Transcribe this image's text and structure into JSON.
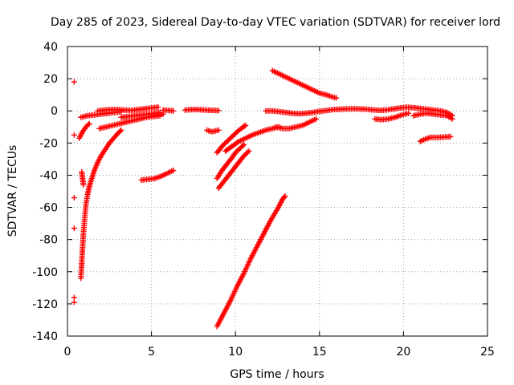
{
  "chart_data": {
    "type": "scatter",
    "title": "Day 285 of 2023, Sidereal Day-to-day VTEC variation (SDTVAR) for receiver lord",
    "xlabel": "GPS time / hours",
    "ylabel": "SDTVAR / TECUs",
    "xlim": [
      0,
      25
    ],
    "ylim": [
      -140,
      40
    ],
    "x_ticks": [
      0,
      5,
      10,
      15,
      20,
      25
    ],
    "y_ticks": [
      -140,
      -120,
      -100,
      -80,
      -60,
      -40,
      -20,
      0,
      20,
      40
    ],
    "x_tick_labels": [
      "0",
      "5",
      "10",
      "15",
      "20",
      "25"
    ],
    "y_tick_labels": [
      "-140",
      "-120",
      "-100",
      "-80",
      "-60",
      "-40",
      "-20",
      "0",
      "20",
      "40"
    ],
    "grid": true,
    "legend": "none",
    "marker": "+",
    "color": "#ff0000",
    "series": [
      {
        "segments": [
          [
            [
              0.4,
              18
            ]
          ],
          [
            [
              0.4,
              -15
            ]
          ],
          [
            [
              0.4,
              -54
            ]
          ],
          [
            [
              0.4,
              -73
            ]
          ],
          [
            [
              0.4,
              -116
            ]
          ],
          [
            [
              0.4,
              -119
            ]
          ],
          [
            [
              0.8,
              -104
            ],
            [
              0.85,
              -95
            ],
            [
              0.9,
              -85
            ],
            [
              0.95,
              -76
            ],
            [
              1.0,
              -70
            ],
            [
              1.05,
              -64
            ],
            [
              1.1,
              -58
            ],
            [
              1.2,
              -52
            ],
            [
              1.3,
              -47
            ],
            [
              1.45,
              -42
            ],
            [
              1.6,
              -37
            ],
            [
              1.8,
              -32
            ],
            [
              2.0,
              -28
            ],
            [
              2.25,
              -24
            ],
            [
              2.5,
              -20
            ],
            [
              2.75,
              -17
            ],
            [
              3.0,
              -14
            ],
            [
              3.2,
              -12
            ]
          ],
          [
            [
              0.85,
              -38
            ],
            [
              0.9,
              -42
            ],
            [
              0.95,
              -46
            ]
          ],
          [
            [
              0.7,
              -17
            ],
            [
              0.9,
              -13
            ],
            [
              1.1,
              -10
            ],
            [
              1.3,
              -8
            ]
          ],
          [
            [
              0.8,
              -4
            ],
            [
              1.2,
              -3
            ],
            [
              1.6,
              -2.5
            ],
            [
              2.0,
              -2
            ],
            [
              2.4,
              -1.5
            ],
            [
              2.8,
              -1
            ],
            [
              3.2,
              -0.5
            ]
          ],
          [
            [
              1.8,
              0
            ],
            [
              2.2,
              0.5
            ],
            [
              2.6,
              0.8
            ],
            [
              3.0,
              0.8
            ],
            [
              3.4,
              0.5
            ],
            [
              3.8,
              0.3
            ],
            [
              4.2,
              0.8
            ],
            [
              4.6,
              1.3
            ],
            [
              5.0,
              1.8
            ],
            [
              5.4,
              2.3
            ]
          ],
          [
            [
              1.9,
              -11
            ],
            [
              2.3,
              -10
            ],
            [
              2.7,
              -9
            ],
            [
              3.1,
              -8
            ],
            [
              3.5,
              -7
            ],
            [
              3.9,
              -6
            ],
            [
              4.3,
              -5
            ],
            [
              4.7,
              -4
            ],
            [
              5.1,
              -3.5
            ],
            [
              5.5,
              -3
            ]
          ],
          [
            [
              3.2,
              -4
            ],
            [
              3.6,
              -3.5
            ],
            [
              4.0,
              -3
            ],
            [
              4.4,
              -2.5
            ],
            [
              4.8,
              -2
            ],
            [
              5.2,
              -1.5
            ],
            [
              5.5,
              -1
            ]
          ],
          [
            [
              4.4,
              -43
            ],
            [
              4.8,
              -42.5
            ],
            [
              5.2,
              -42
            ],
            [
              5.6,
              -40.5
            ],
            [
              6.0,
              -38.5
            ],
            [
              6.3,
              -37
            ]
          ],
          [
            [
              5.1,
              -3
            ],
            [
              5.4,
              -2.5
            ],
            [
              5.7,
              -2
            ]
          ],
          [
            [
              5.7,
              0.5
            ],
            [
              6.0,
              0.3
            ],
            [
              6.3,
              0
            ]
          ],
          [
            [
              7.0,
              0.5
            ],
            [
              7.4,
              0.8
            ],
            [
              7.8,
              0.8
            ],
            [
              8.2,
              0.5
            ],
            [
              8.6,
              0.3
            ],
            [
              9.0,
              0.2
            ]
          ],
          [
            [
              8.3,
              -12
            ],
            [
              8.6,
              -13
            ],
            [
              9.0,
              -12
            ]
          ],
          [
            [
              8.9,
              -26
            ],
            [
              9.2,
              -22
            ],
            [
              9.5,
              -19
            ],
            [
              9.8,
              -16
            ],
            [
              10.1,
              -13
            ],
            [
              10.4,
              -10.5
            ],
            [
              10.6,
              -9
            ]
          ],
          [
            [
              8.9,
              -42
            ],
            [
              9.2,
              -37
            ],
            [
              9.5,
              -33
            ],
            [
              9.8,
              -29
            ],
            [
              10.0,
              -26
            ],
            [
              10.3,
              -23
            ],
            [
              10.5,
              -21
            ]
          ],
          [
            [
              9.0,
              -48
            ],
            [
              9.3,
              -44
            ],
            [
              9.6,
              -40
            ],
            [
              9.9,
              -36
            ],
            [
              10.2,
              -32
            ],
            [
              10.5,
              -28
            ],
            [
              10.8,
              -25
            ]
          ],
          [
            [
              8.9,
              -134
            ],
            [
              9.3,
              -126
            ],
            [
              9.7,
              -118
            ],
            [
              10.1,
              -109
            ],
            [
              10.5,
              -101
            ],
            [
              10.9,
              -92
            ],
            [
              11.3,
              -84
            ],
            [
              11.7,
              -76
            ],
            [
              12.1,
              -68
            ],
            [
              12.5,
              -61
            ],
            [
              12.8,
              -55
            ],
            [
              12.95,
              -53
            ]
          ],
          [
            [
              9.4,
              -25
            ],
            [
              9.8,
              -22
            ],
            [
              10.2,
              -19
            ],
            [
              10.6,
              -17
            ],
            [
              11.0,
              -15
            ],
            [
              11.4,
              -13.5
            ],
            [
              11.8,
              -12
            ],
            [
              12.2,
              -11
            ],
            [
              12.6,
              -10
            ]
          ],
          [
            [
              12.4,
              -10
            ],
            [
              12.8,
              -11
            ],
            [
              13.2,
              -11
            ],
            [
              13.6,
              -10
            ],
            [
              14.0,
              -9
            ],
            [
              14.4,
              -7
            ],
            [
              14.8,
              -5
            ]
          ],
          [
            [
              12.2,
              25
            ],
            [
              12.6,
              23
            ],
            [
              13.0,
              21
            ],
            [
              13.4,
              19
            ],
            [
              13.8,
              17
            ],
            [
              14.2,
              15
            ],
            [
              14.6,
              13
            ],
            [
              15.0,
              11
            ],
            [
              15.4,
              10
            ],
            [
              15.8,
              8.5
            ],
            [
              16.0,
              8
            ]
          ],
          [
            [
              11.8,
              0
            ],
            [
              12.2,
              0
            ],
            [
              12.6,
              -0.5
            ],
            [
              13.0,
              -1
            ],
            [
              13.4,
              -1.5
            ],
            [
              13.8,
              -1.8
            ],
            [
              14.2,
              -1.5
            ],
            [
              14.6,
              -1
            ],
            [
              15.0,
              -0.3
            ],
            [
              15.4,
              0.2
            ],
            [
              15.8,
              0.8
            ],
            [
              16.2,
              1
            ],
            [
              16.6,
              1.2
            ],
            [
              17.0,
              1.3
            ],
            [
              17.4,
              1.2
            ],
            [
              17.8,
              1
            ],
            [
              18.2,
              0.6
            ],
            [
              18.6,
              0.3
            ],
            [
              19.0,
              0.6
            ],
            [
              19.4,
              1.2
            ],
            [
              19.8,
              1.8
            ],
            [
              20.2,
              2.2
            ],
            [
              20.6,
              2
            ],
            [
              21.0,
              1.5
            ],
            [
              21.4,
              1
            ],
            [
              21.8,
              0.5
            ],
            [
              22.2,
              0
            ],
            [
              22.6,
              -1
            ],
            [
              22.9,
              -3
            ]
          ],
          [
            [
              18.3,
              -5
            ],
            [
              18.7,
              -5.5
            ],
            [
              19.1,
              -5
            ],
            [
              19.5,
              -4
            ],
            [
              19.9,
              -2.5
            ],
            [
              20.3,
              -1.5
            ]
          ],
          [
            [
              20.6,
              -3
            ],
            [
              21.0,
              -2
            ],
            [
              21.4,
              -1.5
            ],
            [
              21.8,
              -2
            ],
            [
              22.2,
              -2.5
            ],
            [
              22.6,
              -3
            ],
            [
              22.9,
              -5
            ]
          ],
          [
            [
              21.0,
              -19
            ],
            [
              21.3,
              -17.5
            ],
            [
              21.6,
              -16.5
            ],
            [
              22.0,
              -16.5
            ],
            [
              22.4,
              -16.3
            ],
            [
              22.8,
              -16
            ]
          ]
        ]
      }
    ]
  }
}
